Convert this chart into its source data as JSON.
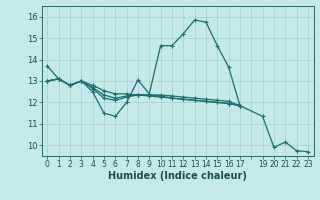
{
  "xlabel": "Humidex (Indice chaleur)",
  "background_color": "#c5e8e8",
  "grid_color": "#a8d0d0",
  "line_color": "#1a7070",
  "ylim": [
    9.5,
    16.5
  ],
  "xlim": [
    -0.5,
    23.5
  ],
  "yticks": [
    10,
    11,
    12,
    13,
    14,
    15,
    16
  ],
  "xtick_labels": [
    "0",
    "1",
    "2",
    "3",
    "4",
    "5",
    "6",
    "7",
    "8",
    "9",
    "10",
    "11",
    "12",
    "13",
    "14",
    "15",
    "16",
    "17",
    "",
    "19",
    "20",
    "21",
    "22",
    "23"
  ],
  "series": [
    {
      "x": [
        0,
        1,
        2,
        3,
        4,
        5,
        6,
        7,
        8,
        9,
        10,
        11,
        12,
        13,
        14,
        15,
        16,
        17
      ],
      "y": [
        13.7,
        13.1,
        12.8,
        13.0,
        12.5,
        11.5,
        11.35,
        12.0,
        13.05,
        12.4,
        14.65,
        14.65,
        15.2,
        15.85,
        15.75,
        14.65,
        13.65,
        11.85
      ]
    },
    {
      "x": [
        0,
        1,
        2,
        3,
        4,
        5,
        6,
        7,
        8,
        9,
        10,
        11,
        12,
        13,
        14,
        15,
        16,
        17
      ],
      "y": [
        13.0,
        13.1,
        12.8,
        13.0,
        12.65,
        12.2,
        12.1,
        12.25,
        12.35,
        12.35,
        12.35,
        12.3,
        12.25,
        12.2,
        12.15,
        12.1,
        12.05,
        11.85
      ]
    },
    {
      "x": [
        0,
        1,
        2,
        3,
        4,
        5,
        6,
        7,
        8,
        9,
        10,
        11,
        12,
        13,
        14,
        15,
        16,
        17
      ],
      "y": [
        13.0,
        13.1,
        12.8,
        13.0,
        12.8,
        12.55,
        12.4,
        12.4,
        12.35,
        12.3,
        12.25,
        12.2,
        12.15,
        12.1,
        12.05,
        12.0,
        11.95,
        11.85
      ]
    },
    {
      "x": [
        0,
        1,
        2,
        3,
        4,
        5,
        6,
        7,
        8,
        9,
        10,
        11,
        12,
        13,
        14,
        15,
        16,
        17,
        19,
        20,
        21,
        22,
        23
      ],
      "y": [
        13.0,
        13.1,
        12.8,
        13.0,
        12.7,
        12.35,
        12.2,
        12.3,
        12.35,
        12.35,
        12.3,
        12.2,
        12.15,
        12.1,
        12.05,
        12.0,
        11.95,
        11.85,
        11.35,
        9.9,
        10.15,
        9.75,
        9.7
      ]
    }
  ]
}
